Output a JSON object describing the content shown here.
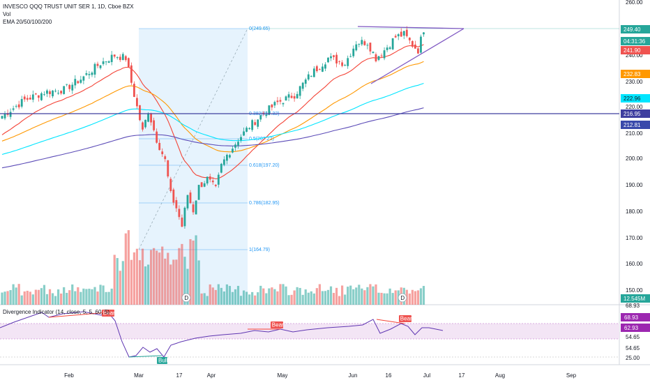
{
  "header": {
    "symbol_line": "INVESCO QQQ TRUST UNIT SER 1, 1D, Cboe BZX",
    "volume_label": "Vol",
    "ema_label": "EMA 20/50/100/200"
  },
  "indicator": {
    "label": "Divergence Indicator (14, close, 5, 5, 60, 5)",
    "bear_tags": [
      "Bear",
      "Bear",
      "Bear"
    ],
    "bull_tag": "Bull"
  },
  "price_axis": {
    "ticks": [
      "260.00",
      "250.00",
      "240.00",
      "230.00",
      "220.00",
      "210.00",
      "200.00",
      "190.00",
      "180.00",
      "170.00",
      "160.00",
      "150.00"
    ],
    "price_tags": [
      {
        "text": "249.40",
        "color": "#26a69a",
        "text_color": "#ffffff"
      },
      {
        "text": "04:31:36",
        "color": "#26a69a",
        "text_color": "#ffffff"
      },
      {
        "text": "241.90",
        "color": "#ef5350",
        "text_color": "#ffffff"
      },
      {
        "text": "232.83",
        "color": "#ff9800",
        "text_color": "#ffffff"
      },
      {
        "text": "222.96",
        "color": "#00e5ff",
        "text_color": "#131722"
      },
      {
        "text": "216.95",
        "color": "#3f3f9f",
        "text_color": "#ffffff"
      },
      {
        "text": "212.81",
        "color": "#3949ab",
        "text_color": "#ffffff"
      },
      {
        "text": "12.545M",
        "color": "#26a69a",
        "text_color": "#ffffff"
      }
    ]
  },
  "indicator_axis": {
    "ticks": [
      "68.93",
      "54.65",
      "54.65",
      "25.00"
    ],
    "tags": [
      {
        "text": "68.93",
        "color": "#9c27b0"
      },
      {
        "text": "62.93",
        "color": "#9c27b0"
      }
    ]
  },
  "time_axis": {
    "labels": [
      "Feb",
      "Mar",
      "17",
      "Apr",
      "May",
      "Jun",
      "16",
      "Jul",
      "17",
      "Aug",
      "Sep"
    ]
  },
  "fib_levels": [
    "0(249.65)",
    "0.382(217.32)",
    "0.5(207.22)",
    "0.618(197.20)",
    "0.786(182.95)",
    "1(164.79)"
  ],
  "dividend_marker": "D",
  "colors": {
    "up": "#26a69a",
    "down": "#ef5350",
    "ema20": "#f44336",
    "ema50": "#ff9800",
    "ema100": "#00e5ff",
    "ema200": "#5b4bb7",
    "fib_zone": "#e3f2fd",
    "indicator_band": "#f3e5f5"
  }
}
